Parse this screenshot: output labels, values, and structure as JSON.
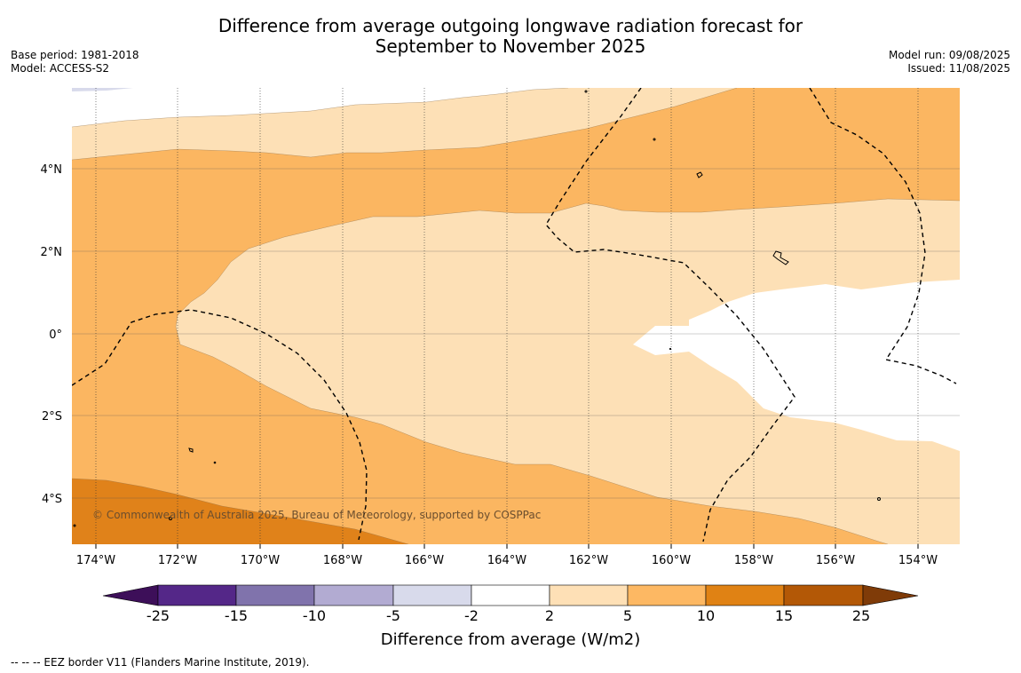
{
  "title": {
    "line1": "Difference from average outgoing longwave radiation forecast for",
    "line2": "September to November 2025"
  },
  "meta_left": {
    "base_period": "Base period: 1981-2018",
    "model": "Model: ACCESS-S2"
  },
  "meta_right": {
    "model_run": "Model run: 09/08/2025",
    "issued": "Issued: 11/08/2025"
  },
  "copyright": "© Commonwealth of Australia 2025, Bureau of Meteorology, supported by COSPPac",
  "footer_note": "--  --  -- EEZ border V11 (Flanders Marine Institute, 2019).",
  "map": {
    "lon_labels": [
      "174°W",
      "172°W",
      "170°W",
      "168°W",
      "166°W",
      "164°W",
      "162°W",
      "160°W",
      "158°W",
      "156°W",
      "154°W"
    ],
    "lat_labels": [
      "4°N",
      "2°N",
      "0°",
      "2°S",
      "4°S"
    ],
    "colors": {
      "band_2_5": "#fde0b6",
      "band_5_10": "#fbb661",
      "band_10_15": "#e0821a",
      "land": "#000000",
      "eez": "#000000"
    }
  },
  "colorbar": {
    "title": "Difference from average (W/m2)",
    "tick_labels": [
      "-25",
      "-15",
      "-10",
      "-5",
      "-2",
      "2",
      "5",
      "10",
      "15",
      "25"
    ],
    "colors": [
      "#3d0f59",
      "#542788",
      "#8073ac",
      "#b2abd2",
      "#d8daeb",
      "#ffffff",
      "#fee0b6",
      "#fdb863",
      "#e08214",
      "#b35806",
      "#7f3b08"
    ]
  }
}
